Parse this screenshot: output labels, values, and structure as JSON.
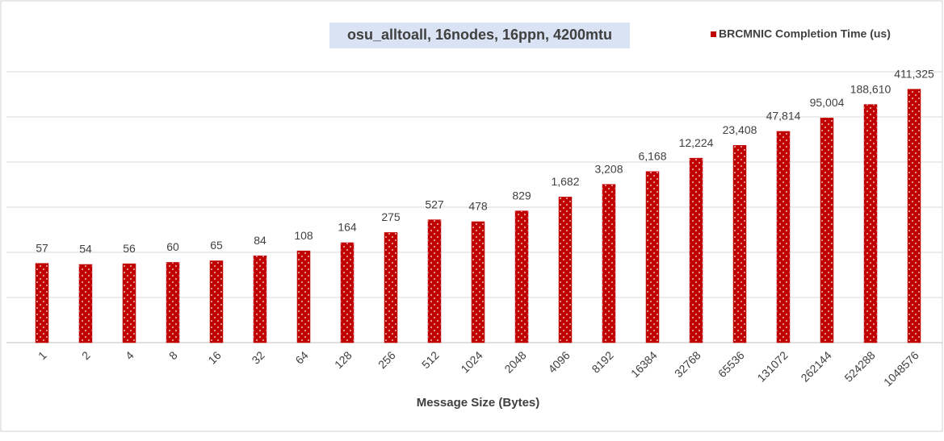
{
  "chart_data": {
    "type": "bar",
    "title": "osu_alltoall, 16nodes, 16ppn, 4200mtu",
    "x_label": "Message Size (Bytes)",
    "categories": [
      "1",
      "2",
      "4",
      "8",
      "16",
      "32",
      "64",
      "128",
      "256",
      "512",
      "1024",
      "2048",
      "4096",
      "8192",
      "16384",
      "32768",
      "65536",
      "131072",
      "262144",
      "524288",
      "1048576"
    ],
    "series": [
      {
        "name": "BRCMNIC Completion Time (us)",
        "color": "#c00000",
        "values": [
          57,
          54,
          56,
          60,
          65,
          84,
          108,
          164,
          275,
          527,
          478,
          829,
          1682,
          3208,
          6168,
          12224,
          23408,
          47814,
          95004,
          188610,
          411325
        ],
        "value_labels": [
          "57",
          "54",
          "56",
          "60",
          "65",
          "84",
          "108",
          "164",
          "275",
          "527",
          "478",
          "829",
          "1,682",
          "3,208",
          "6,168",
          "12,224",
          "23,408",
          "47,814",
          "95,004",
          "188,610",
          "411,325"
        ]
      }
    ],
    "ylim": [
      1,
      1000000
    ],
    "yticks": [
      1,
      10,
      100,
      1000,
      10000,
      100000,
      1000000
    ],
    "log_scale": true,
    "grid": true,
    "legend": "top-right"
  }
}
